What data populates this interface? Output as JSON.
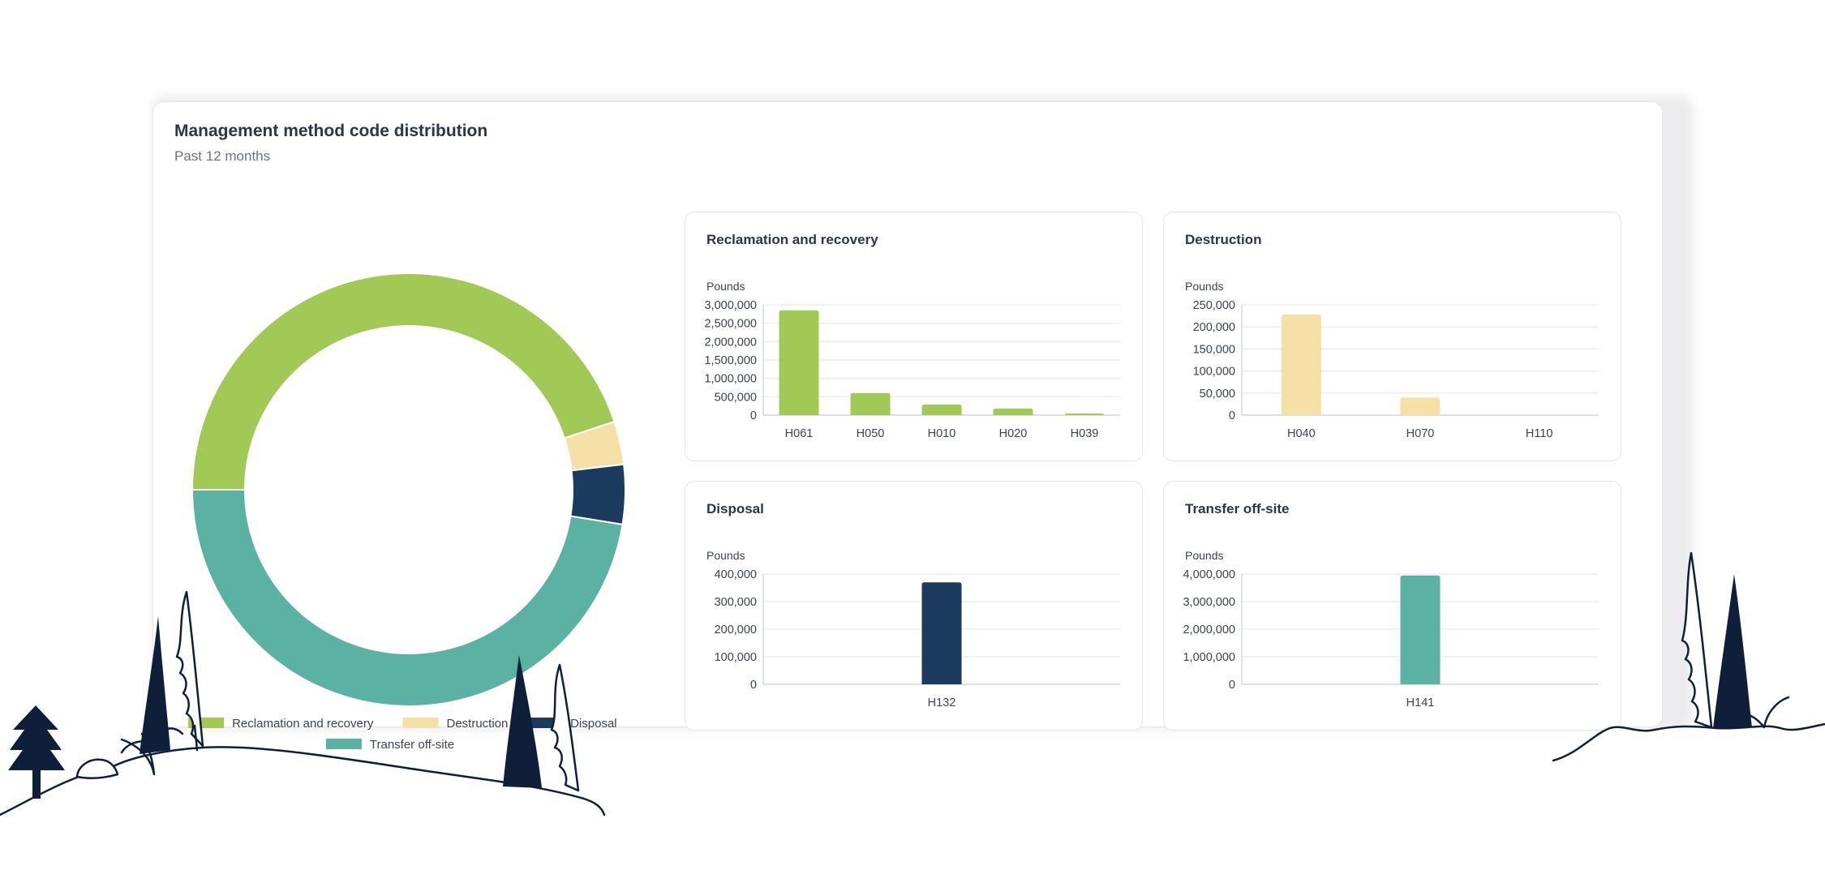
{
  "card": {
    "title": "Management method code distribution",
    "subtitle": "Past 12 months"
  },
  "colors": {
    "reclamation": "#a2c855",
    "destruction": "#f5e0a8",
    "disposal": "#1c3a5e",
    "transfer": "#5bb2a2",
    "ink": "#0f1f3a"
  },
  "chart_data": [
    {
      "type": "pie",
      "title": "",
      "legend_position": "bottom",
      "categories": [
        "Reclamation and recovery",
        "Destruction",
        "Disposal",
        "Transfer off-site"
      ],
      "values": [
        3740000,
        268000,
        370000,
        3950000
      ],
      "colors": [
        "#a2c855",
        "#f5e0a8",
        "#1c3a5e",
        "#5bb2a2"
      ]
    },
    {
      "type": "bar",
      "title": "Reclamation and recovery",
      "ylabel": "Pounds",
      "categories": [
        "H061",
        "H050",
        "H010",
        "H020",
        "H039"
      ],
      "values": [
        2850000,
        600000,
        290000,
        180000,
        20000
      ],
      "ylim": [
        0,
        3000000
      ],
      "yticks": [
        0,
        500000,
        1000000,
        1500000,
        2000000,
        2500000,
        3000000
      ],
      "ytick_labels": [
        "0",
        "500,000",
        "1,000,000",
        "1,500,000",
        "2,000,000",
        "2,500,000",
        "3,000,000"
      ],
      "color": "#a2c855",
      "grid": true
    },
    {
      "type": "bar",
      "title": "Destruction",
      "ylabel": "Pounds",
      "categories": [
        "H040",
        "H070",
        "H110"
      ],
      "values": [
        228000,
        40000,
        0
      ],
      "ylim": [
        0,
        250000
      ],
      "yticks": [
        0,
        50000,
        100000,
        150000,
        200000,
        250000
      ],
      "ytick_labels": [
        "0",
        "50,000",
        "100,000",
        "150,000",
        "200,000",
        "250,000"
      ],
      "color": "#f5e0a8",
      "grid": true
    },
    {
      "type": "bar",
      "title": "Disposal",
      "ylabel": "Pounds",
      "categories": [
        "H132"
      ],
      "values": [
        370000
      ],
      "ylim": [
        0,
        400000
      ],
      "yticks": [
        0,
        100000,
        200000,
        300000,
        400000
      ],
      "ytick_labels": [
        "0",
        "100,000",
        "200,000",
        "300,000",
        "400,000"
      ],
      "color": "#1c3a5e",
      "grid": true
    },
    {
      "type": "bar",
      "title": "Transfer off-site",
      "ylabel": "Pounds",
      "categories": [
        "H141"
      ],
      "values": [
        3950000
      ],
      "ylim": [
        0,
        4000000
      ],
      "yticks": [
        0,
        1000000,
        2000000,
        3000000,
        4000000
      ],
      "ytick_labels": [
        "0",
        "1,000,000",
        "2,000,000",
        "3,000,000",
        "4,000,000"
      ],
      "color": "#5bb2a2",
      "grid": true
    }
  ]
}
